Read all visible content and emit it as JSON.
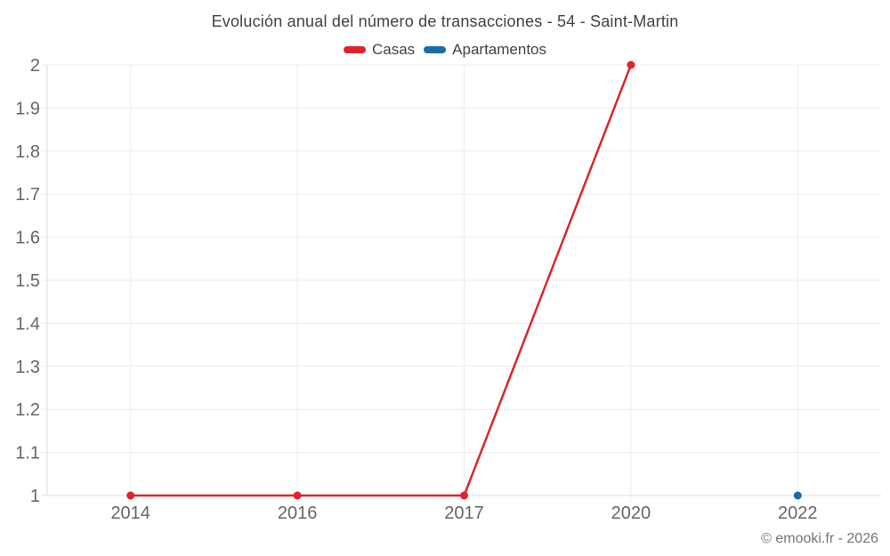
{
  "title": "Evolución anual del número de transacciones - 54 - Saint-Martin",
  "footer": "© emooki.fr - 2026",
  "legend": [
    {
      "label": "Casas",
      "color": "#d9262d"
    },
    {
      "label": "Apartamentos",
      "color": "#1b6ca5"
    }
  ],
  "chart_data": {
    "type": "line",
    "title": "Evolución anual del número de transacciones - 54 - Saint-Martin",
    "xlabel": "",
    "ylabel": "",
    "categories": [
      "2014",
      "2016",
      "2017",
      "2020",
      "2022"
    ],
    "series": [
      {
        "name": "Casas",
        "color": "#d9262d",
        "values": [
          1,
          1,
          1,
          2,
          null
        ]
      },
      {
        "name": "Apartamentos",
        "color": "#1b6ca5",
        "values": [
          null,
          null,
          null,
          null,
          1
        ]
      }
    ],
    "ylim": [
      1,
      2
    ],
    "ytick_step": 0.1,
    "ytick_labels": [
      "1",
      "1.1",
      "1.2",
      "1.3",
      "1.4",
      "1.5",
      "1.6",
      "1.7",
      "1.8",
      "1.9",
      "2"
    ],
    "grid": true,
    "legend_position": "top",
    "grid_color": "#ececec",
    "axis_color": "#dcdcdc",
    "tick_label_color": "#666666"
  }
}
